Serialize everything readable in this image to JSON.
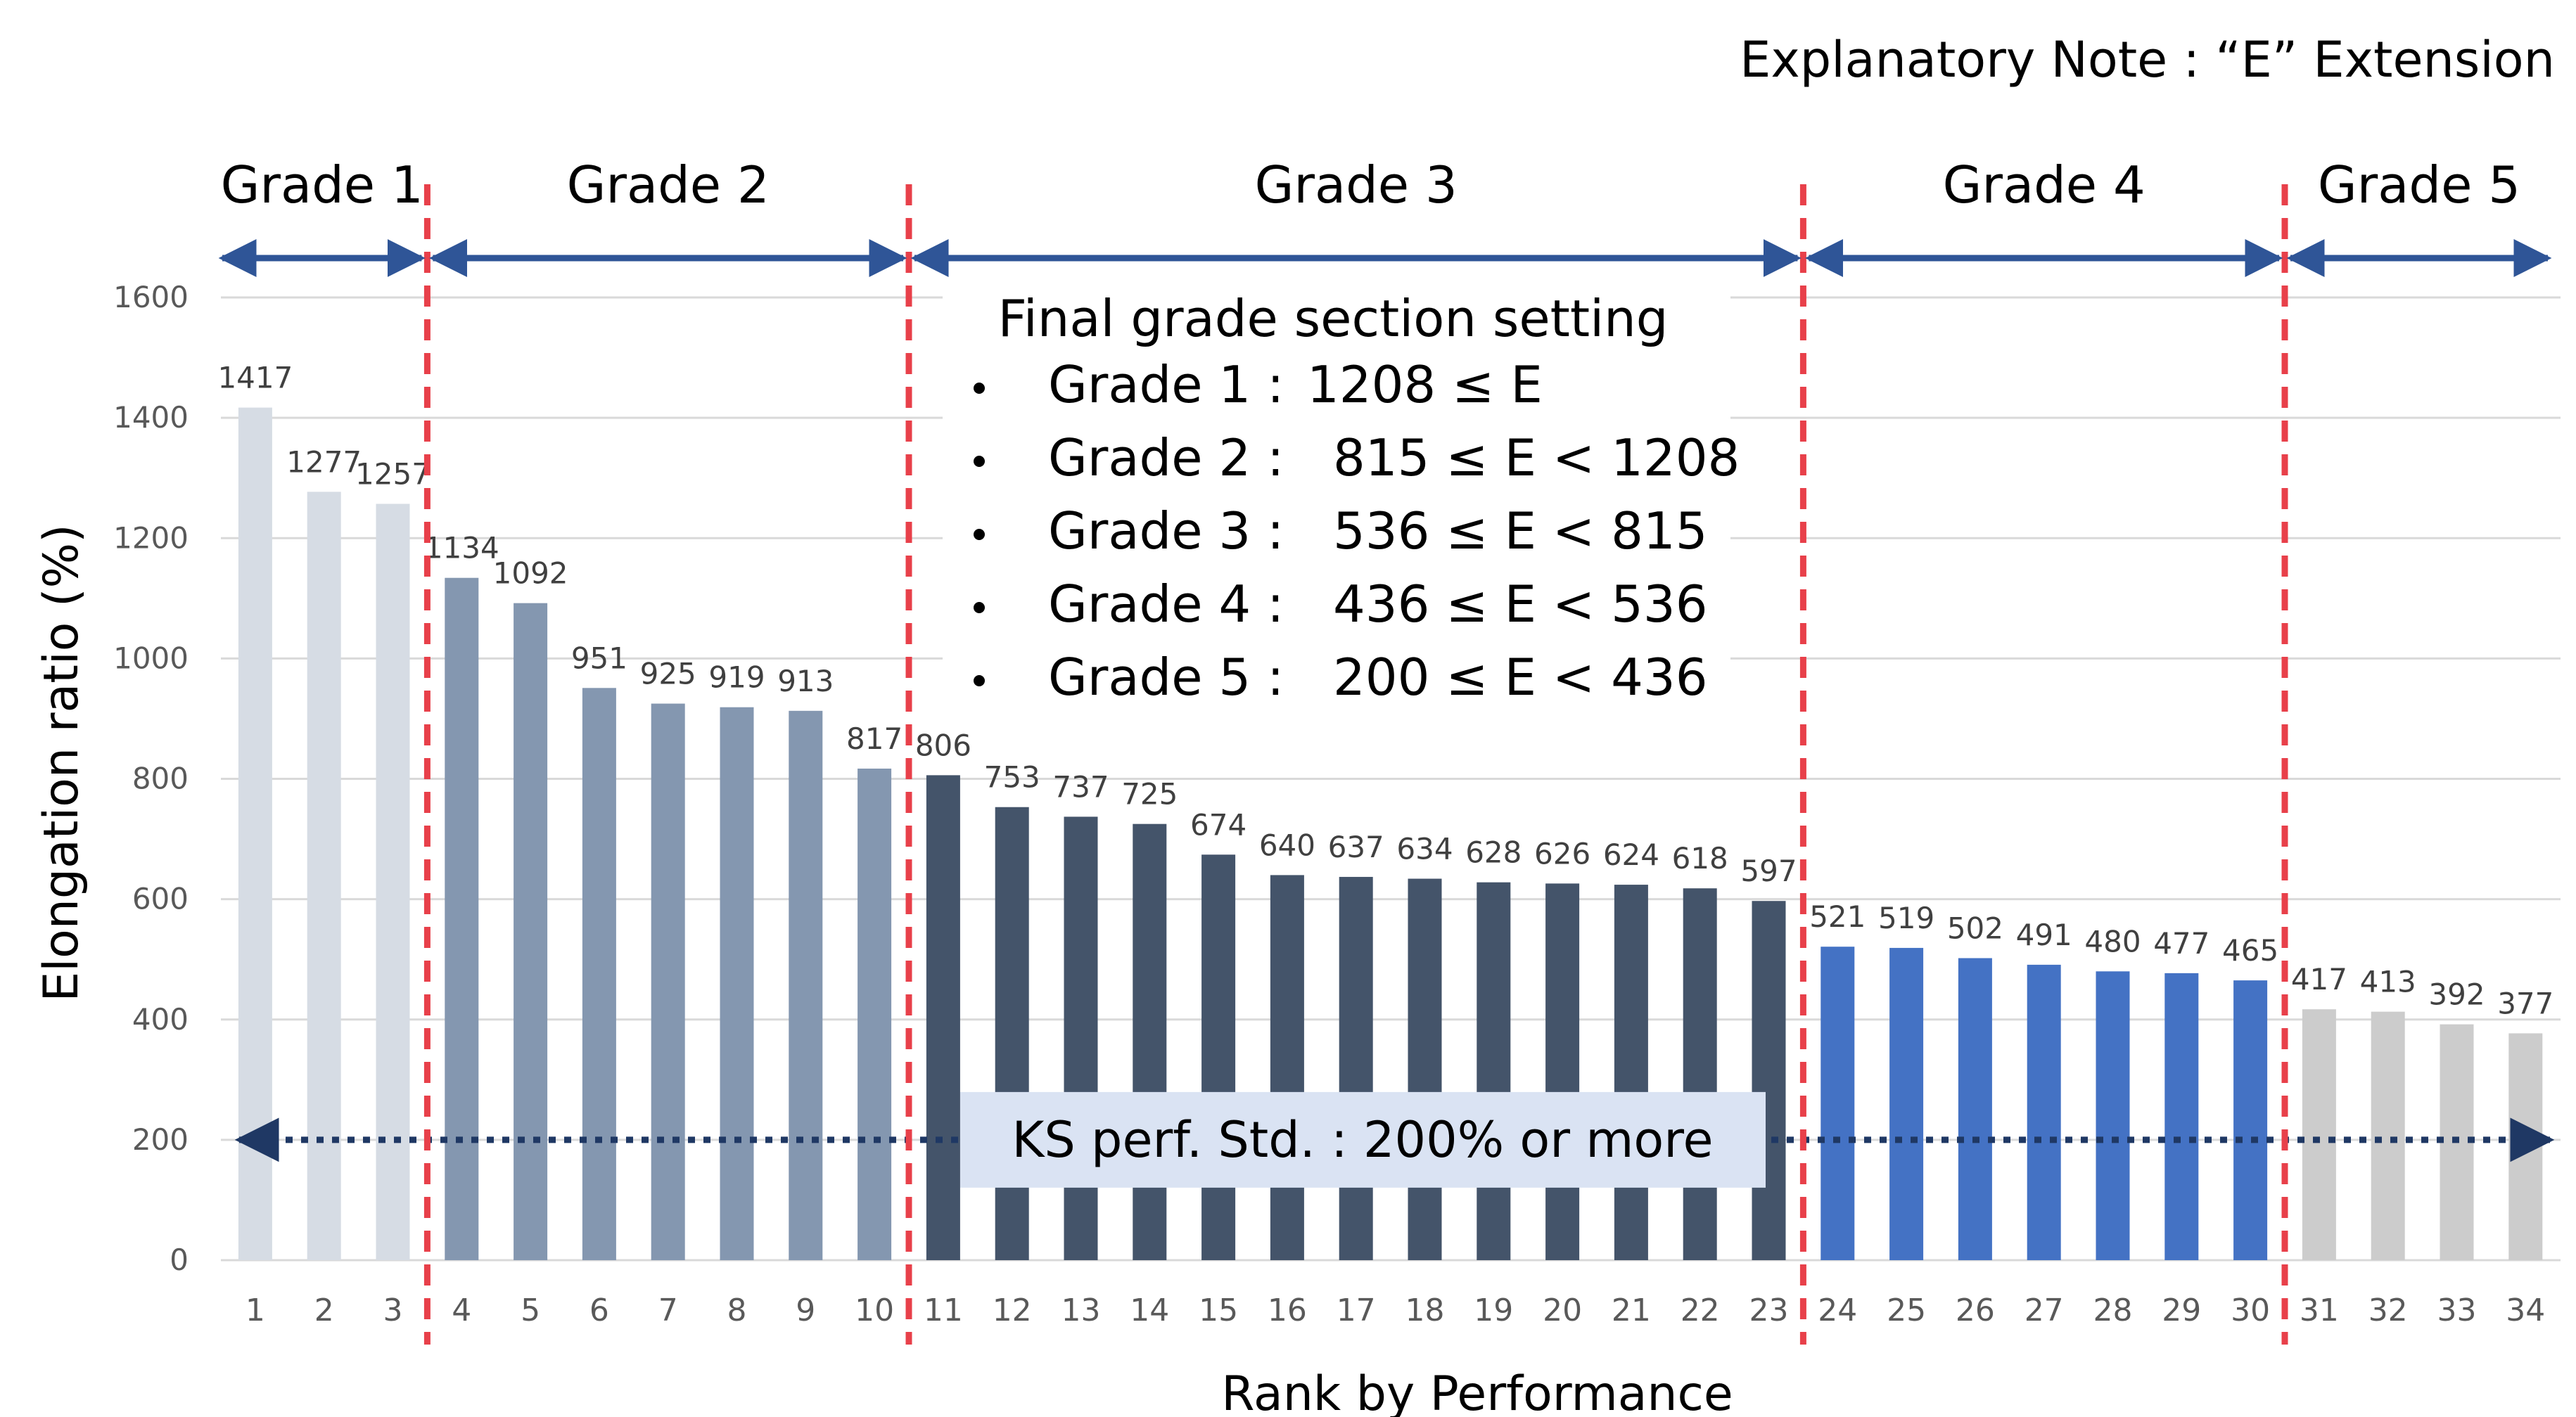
{
  "note": "Explanatory Note : “E” Extension",
  "colors": {
    "grade1": "#d6dce4",
    "grade2": "#8497b0",
    "grade3": "#44546a",
    "grade4": "#4472c4",
    "grade5": "#cccccc",
    "divider": "#e8404a",
    "arrow": "#2f5597",
    "ks_line": "#1f3864",
    "ks_box": "#dae3f3"
  },
  "grades": [
    {
      "label": "Grade 1",
      "from_rank": 1,
      "to_rank": 3
    },
    {
      "label": "Grade 2",
      "from_rank": 4,
      "to_rank": 10
    },
    {
      "label": "Grade 3",
      "from_rank": 11,
      "to_rank": 23
    },
    {
      "label": "Grade 4",
      "from_rank": 24,
      "to_rank": 30
    },
    {
      "label": "Grade 5",
      "from_rank": 31,
      "to_rank": 34
    }
  ],
  "setting_box": {
    "title": "Final grade section setting",
    "rows": [
      {
        "grade": "Grade 1 :",
        "range": "1208 ≤ E"
      },
      {
        "grade": "Grade 2 :",
        "range": "815 ≤ E < 1208"
      },
      {
        "grade": "Grade 3 :",
        "range": "536 ≤ E <  815"
      },
      {
        "grade": "Grade 4 :",
        "range": "436 ≤ E <  536"
      },
      {
        "grade": "Grade 5 :",
        "range": "200 ≤ E <  436"
      }
    ]
  },
  "ks_standard": {
    "label": "KS perf. Std. : 200% or more",
    "value": 200
  },
  "chart_data": {
    "type": "bar",
    "title": "",
    "xlabel": "Rank by Performance",
    "ylabel": "Elongation ratio (%)",
    "ylim": [
      0,
      1600
    ],
    "yticks": [
      0,
      200,
      400,
      600,
      800,
      1000,
      1200,
      1400,
      1600
    ],
    "grid": true,
    "categories": [
      "1",
      "2",
      "3",
      "4",
      "5",
      "6",
      "7",
      "8",
      "9",
      "10",
      "11",
      "12",
      "13",
      "14",
      "15",
      "16",
      "17",
      "18",
      "19",
      "20",
      "21",
      "22",
      "23",
      "24",
      "25",
      "26",
      "27",
      "28",
      "29",
      "30",
      "31",
      "32",
      "33",
      "34"
    ],
    "values": [
      1417,
      1277,
      1257,
      1134,
      1092,
      951,
      925,
      919,
      913,
      817,
      806,
      753,
      737,
      725,
      674,
      640,
      637,
      634,
      628,
      626,
      624,
      618,
      597,
      521,
      519,
      502,
      491,
      480,
      477,
      465,
      417,
      413,
      392,
      377
    ]
  }
}
